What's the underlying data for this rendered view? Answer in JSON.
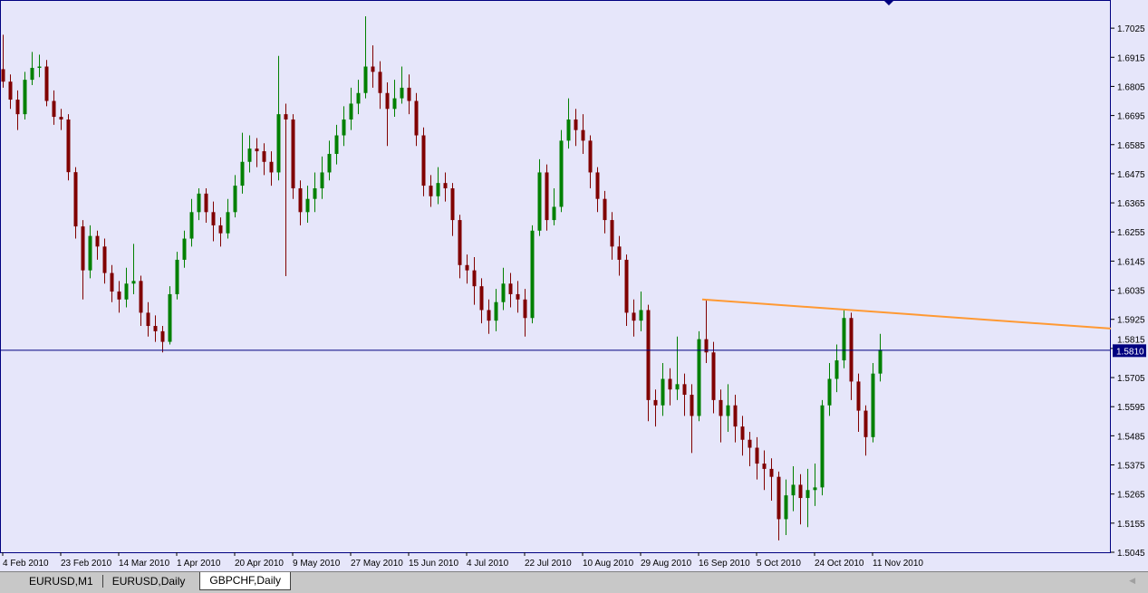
{
  "tabs": [
    {
      "label": "EURUSD,M1"
    },
    {
      "label": "EURUSD,Daily"
    },
    {
      "label": "GBPCHF,Daily",
      "active": true
    }
  ],
  "chart_data": {
    "type": "candlestick",
    "symbol": "GBPCHF",
    "timeframe": "Daily",
    "ylim": [
      1.5045,
      1.7128
    ],
    "y_ticks": [
      "1.7025",
      "1.6915",
      "1.6805",
      "1.6695",
      "1.6585",
      "1.6475",
      "1.6365",
      "1.6255",
      "1.6145",
      "1.6035",
      "1.5925",
      "1.5815",
      "1.5705",
      "1.5595",
      "1.5485",
      "1.5375",
      "1.5265",
      "1.5155",
      "1.5045"
    ],
    "x_ticks": [
      {
        "label": "4 Feb 2010",
        "bar": 0
      },
      {
        "label": "23 Feb 2010",
        "bar": 8
      },
      {
        "label": "14 Mar 2010",
        "bar": 16
      },
      {
        "label": "1 Apr 2010",
        "bar": 24
      },
      {
        "label": "20 Apr 2010",
        "bar": 32
      },
      {
        "label": "9 May 2010",
        "bar": 40
      },
      {
        "label": "27 May 2010",
        "bar": 48
      },
      {
        "label": "15 Jun 2010",
        "bar": 56
      },
      {
        "label": "4 Jul 2010",
        "bar": 64
      },
      {
        "label": "22 Jul 2010",
        "bar": 72
      },
      {
        "label": "10 Aug 2010",
        "bar": 80
      },
      {
        "label": "29 Aug 2010",
        "bar": 88
      },
      {
        "label": "16 Sep 2010",
        "bar": 96
      },
      {
        "label": "5 Oct 2010",
        "bar": 104
      },
      {
        "label": "24 Oct 2010",
        "bar": 112
      },
      {
        "label": "11 Nov 2010",
        "bar": 120
      }
    ],
    "current_price": "1.5810",
    "grid": false,
    "colors": {
      "background": "#e6e6fa",
      "bull": "#008000",
      "bear": "#800000",
      "axis": "#000080",
      "trendline": "#ff9933",
      "price_line": "#000080"
    },
    "trendline": {
      "points": [
        [
          96.5,
          1.6
        ],
        [
          116,
          1.5962
        ]
      ],
      "extend_right": true
    },
    "ohlc": [
      [
        1.687,
        1.7,
        1.68,
        1.6823
      ],
      [
        1.6823,
        1.685,
        1.672,
        1.6755
      ],
      [
        1.6755,
        1.679,
        1.664,
        1.67
      ],
      [
        1.67,
        1.686,
        1.668,
        1.683
      ],
      [
        1.683,
        1.6935,
        1.681,
        1.6875
      ],
      [
        1.6875,
        1.6925,
        1.684,
        1.688
      ],
      [
        1.688,
        1.6905,
        1.673,
        1.675
      ],
      [
        1.675,
        1.679,
        1.666,
        1.669
      ],
      [
        1.669,
        1.672,
        1.664,
        1.668
      ],
      [
        1.668,
        1.67,
        1.645,
        1.6481
      ],
      [
        1.6481,
        1.65,
        1.623,
        1.6276
      ],
      [
        1.6276,
        1.63,
        1.6,
        1.611
      ],
      [
        1.611,
        1.628,
        1.608,
        1.624
      ],
      [
        1.624,
        1.626,
        1.615,
        1.62
      ],
      [
        1.62,
        1.623,
        1.606,
        1.61
      ],
      [
        1.61,
        1.613,
        1.599,
        1.603
      ],
      [
        1.603,
        1.607,
        1.595,
        1.6
      ],
      [
        1.6,
        1.612,
        1.597,
        1.606
      ],
      [
        1.606,
        1.621,
        1.602,
        1.607
      ],
      [
        1.607,
        1.609,
        1.59,
        1.595
      ],
      [
        1.595,
        1.599,
        1.586,
        1.59
      ],
      [
        1.59,
        1.594,
        1.584,
        1.588
      ],
      [
        1.588,
        1.59,
        1.58,
        1.584
      ],
      [
        1.584,
        1.605,
        1.583,
        1.602
      ],
      [
        1.602,
        1.618,
        1.6,
        1.615
      ],
      [
        1.615,
        1.626,
        1.612,
        1.623
      ],
      [
        1.623,
        1.638,
        1.62,
        1.633
      ],
      [
        1.633,
        1.642,
        1.63,
        1.64
      ],
      [
        1.64,
        1.642,
        1.629,
        1.633
      ],
      [
        1.633,
        1.637,
        1.622,
        1.628
      ],
      [
        1.628,
        1.631,
        1.62,
        1.625
      ],
      [
        1.625,
        1.638,
        1.623,
        1.633
      ],
      [
        1.633,
        1.647,
        1.631,
        1.643
      ],
      [
        1.643,
        1.663,
        1.64,
        1.652
      ],
      [
        1.652,
        1.662,
        1.648,
        1.657
      ],
      [
        1.657,
        1.661,
        1.65,
        1.656
      ],
      [
        1.656,
        1.659,
        1.647,
        1.652
      ],
      [
        1.652,
        1.656,
        1.643,
        1.648
      ],
      [
        1.648,
        1.692,
        1.645,
        1.67
      ],
      [
        1.67,
        1.674,
        1.6088,
        1.668
      ],
      [
        1.668,
        1.67,
        1.638,
        1.642
      ],
      [
        1.642,
        1.645,
        1.628,
        1.633
      ],
      [
        1.633,
        1.643,
        1.629,
        1.638
      ],
      [
        1.638,
        1.648,
        1.633,
        1.642
      ],
      [
        1.642,
        1.654,
        1.638,
        1.648
      ],
      [
        1.648,
        1.66,
        1.645,
        1.655
      ],
      [
        1.655,
        1.666,
        1.651,
        1.662
      ],
      [
        1.662,
        1.673,
        1.658,
        1.668
      ],
      [
        1.668,
        1.68,
        1.664,
        1.674
      ],
      [
        1.674,
        1.683,
        1.67,
        1.678
      ],
      [
        1.678,
        1.707,
        1.676,
        1.688
      ],
      [
        1.688,
        1.696,
        1.68,
        1.686
      ],
      [
        1.686,
        1.69,
        1.672,
        1.678
      ],
      [
        1.678,
        1.682,
        1.658,
        1.672
      ],
      [
        1.672,
        1.683,
        1.669,
        1.676
      ],
      [
        1.676,
        1.688,
        1.674,
        1.68
      ],
      [
        1.68,
        1.685,
        1.67,
        1.675
      ],
      [
        1.675,
        1.678,
        1.658,
        1.662
      ],
      [
        1.662,
        1.665,
        1.639,
        1.643
      ],
      [
        1.643,
        1.647,
        1.635,
        1.639
      ],
      [
        1.639,
        1.65,
        1.636,
        1.644
      ],
      [
        1.644,
        1.648,
        1.637,
        1.642
      ],
      [
        1.642,
        1.644,
        1.624,
        1.63
      ],
      [
        1.63,
        1.632,
        1.608,
        1.613
      ],
      [
        1.613,
        1.617,
        1.606,
        1.611
      ],
      [
        1.611,
        1.616,
        1.598,
        1.605
      ],
      [
        1.605,
        1.608,
        1.591,
        1.596
      ],
      [
        1.596,
        1.6,
        1.587,
        1.592
      ],
      [
        1.592,
        1.604,
        1.588,
        1.599
      ],
      [
        1.599,
        1.612,
        1.596,
        1.606
      ],
      [
        1.606,
        1.61,
        1.597,
        1.602
      ],
      [
        1.602,
        1.607,
        1.595,
        1.6
      ],
      [
        1.6,
        1.604,
        1.586,
        1.593
      ],
      [
        1.593,
        1.628,
        1.591,
        1.626
      ],
      [
        1.626,
        1.653,
        1.624,
        1.648
      ],
      [
        1.648,
        1.651,
        1.626,
        1.63
      ],
      [
        1.63,
        1.642,
        1.628,
        1.635
      ],
      [
        1.635,
        1.664,
        1.633,
        1.66
      ],
      [
        1.66,
        1.676,
        1.657,
        1.668
      ],
      [
        1.668,
        1.672,
        1.658,
        1.664
      ],
      [
        1.664,
        1.67,
        1.655,
        1.66
      ],
      [
        1.66,
        1.662,
        1.642,
        1.648
      ],
      [
        1.648,
        1.65,
        1.633,
        1.638
      ],
      [
        1.638,
        1.641,
        1.625,
        1.63
      ],
      [
        1.63,
        1.633,
        1.615,
        1.62
      ],
      [
        1.62,
        1.624,
        1.609,
        1.615
      ],
      [
        1.615,
        1.617,
        1.59,
        1.595
      ],
      [
        1.595,
        1.6,
        1.586,
        1.592
      ],
      [
        1.592,
        1.603,
        1.588,
        1.596
      ],
      [
        1.596,
        1.598,
        1.554,
        1.562
      ],
      [
        1.562,
        1.566,
        1.552,
        1.56
      ],
      [
        1.56,
        1.576,
        1.556,
        1.57
      ],
      [
        1.57,
        1.574,
        1.56,
        1.566
      ],
      [
        1.566,
        1.586,
        1.562,
        1.568
      ],
      [
        1.568,
        1.572,
        1.556,
        1.564
      ],
      [
        1.564,
        1.568,
        1.542,
        1.556
      ],
      [
        1.556,
        1.588,
        1.554,
        1.585
      ],
      [
        1.585,
        1.6,
        1.576,
        1.58
      ],
      [
        1.58,
        1.584,
        1.557,
        1.562
      ],
      [
        1.562,
        1.566,
        1.546,
        1.556
      ],
      [
        1.556,
        1.568,
        1.55,
        1.56
      ],
      [
        1.56,
        1.564,
        1.546,
        1.552
      ],
      [
        1.552,
        1.556,
        1.541,
        1.547
      ],
      [
        1.547,
        1.55,
        1.537,
        1.544
      ],
      [
        1.544,
        1.548,
        1.532,
        1.538
      ],
      [
        1.538,
        1.543,
        1.528,
        1.536
      ],
      [
        1.536,
        1.54,
        1.524,
        1.533
      ],
      [
        1.533,
        1.535,
        1.509,
        1.517
      ],
      [
        1.517,
        1.532,
        1.511,
        1.526
      ],
      [
        1.526,
        1.537,
        1.52,
        1.53
      ],
      [
        1.53,
        1.534,
        1.515,
        1.525
      ],
      [
        1.525,
        1.536,
        1.514,
        1.528
      ],
      [
        1.528,
        1.538,
        1.522,
        1.529
      ],
      [
        1.529,
        1.562,
        1.526,
        1.56
      ],
      [
        1.56,
        1.576,
        1.556,
        1.57
      ],
      [
        1.57,
        1.583,
        1.565,
        1.577
      ],
      [
        1.577,
        1.5965,
        1.574,
        1.593
      ],
      [
        1.593,
        1.595,
        1.562,
        1.569
      ],
      [
        1.569,
        1.572,
        1.55,
        1.558
      ],
      [
        1.558,
        1.56,
        1.541,
        1.548
      ],
      [
        1.548,
        1.576,
        1.546,
        1.572
      ],
      [
        1.572,
        1.587,
        1.569,
        1.581
      ]
    ]
  }
}
